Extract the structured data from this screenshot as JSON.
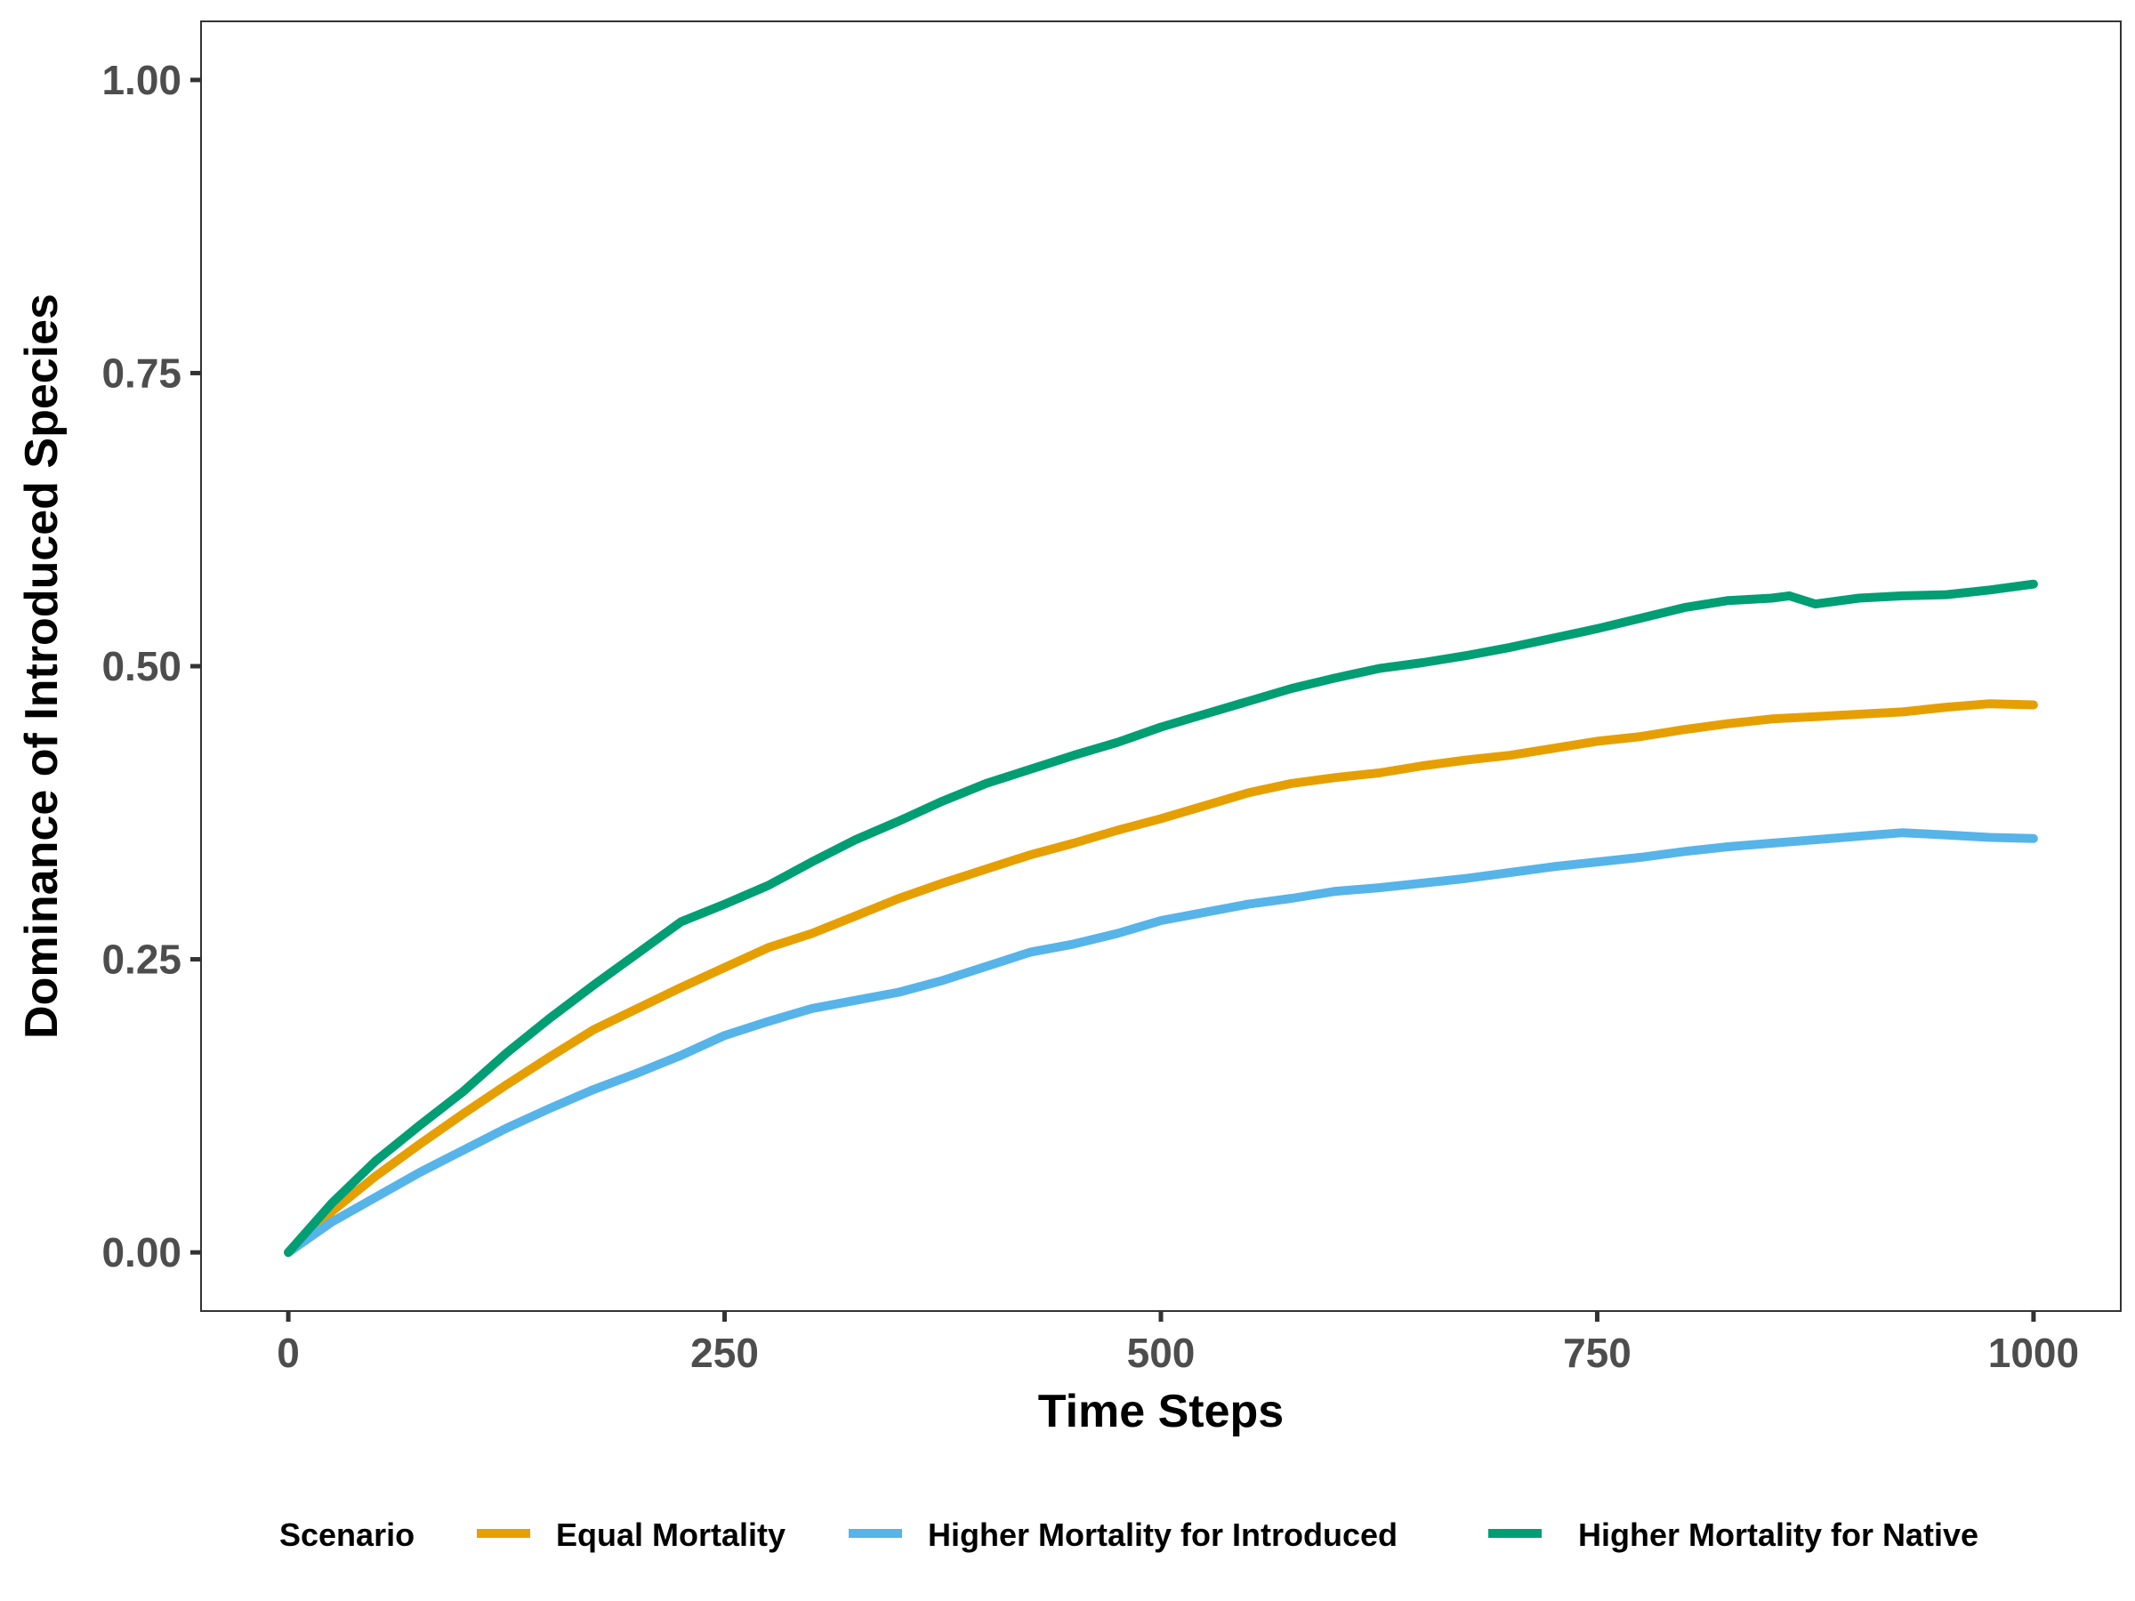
{
  "chart_data": {
    "type": "line",
    "xlabel": "Time Steps",
    "ylabel": "Dominance of Introduced Species",
    "xlim": [
      -50,
      1050
    ],
    "ylim": [
      -0.05,
      1.05
    ],
    "x_ticks": [
      0,
      250,
      500,
      750,
      1000
    ],
    "x_tick_labels": [
      "0",
      "250",
      "500",
      "750",
      "1000"
    ],
    "y_ticks": [
      0,
      0.25,
      0.5,
      0.75,
      1.0
    ],
    "y_tick_labels": [
      "0.00",
      "0.25",
      "0.50",
      "0.75",
      "1.00"
    ],
    "grid": false,
    "legend": {
      "title": "Scenario",
      "position": "bottom"
    },
    "series": [
      {
        "name": "Equal Mortality",
        "color": "#E69F00",
        "x": [
          0,
          25,
          50,
          75,
          100,
          125,
          150,
          175,
          200,
          225,
          250,
          275,
          300,
          325,
          350,
          375,
          400,
          425,
          450,
          475,
          500,
          525,
          550,
          575,
          600,
          625,
          650,
          675,
          700,
          725,
          750,
          775,
          800,
          825,
          850,
          875,
          900,
          925,
          950,
          975,
          1000
        ],
        "values": [
          0.0,
          0.035,
          0.065,
          0.092,
          0.118,
          0.143,
          0.167,
          0.19,
          0.208,
          0.226,
          0.243,
          0.26,
          0.272,
          0.287,
          0.302,
          0.315,
          0.327,
          0.339,
          0.349,
          0.36,
          0.37,
          0.381,
          0.392,
          0.4,
          0.405,
          0.409,
          0.415,
          0.42,
          0.424,
          0.43,
          0.436,
          0.44,
          0.446,
          0.451,
          0.455,
          0.457,
          0.459,
          0.461,
          0.465,
          0.468,
          0.467
        ]
      },
      {
        "name": "Higher Mortality for Introduced",
        "color": "#56B4E9",
        "x": [
          0,
          25,
          50,
          75,
          100,
          125,
          150,
          175,
          200,
          225,
          250,
          275,
          300,
          325,
          350,
          375,
          400,
          425,
          450,
          475,
          500,
          525,
          550,
          575,
          600,
          625,
          650,
          675,
          700,
          725,
          750,
          775,
          800,
          825,
          850,
          875,
          900,
          925,
          950,
          975,
          1000
        ],
        "values": [
          0.0,
          0.026,
          0.047,
          0.068,
          0.087,
          0.106,
          0.123,
          0.139,
          0.153,
          0.168,
          0.185,
          0.197,
          0.208,
          0.215,
          0.222,
          0.232,
          0.244,
          0.256,
          0.263,
          0.272,
          0.283,
          0.29,
          0.297,
          0.302,
          0.308,
          0.311,
          0.315,
          0.319,
          0.324,
          0.329,
          0.333,
          0.337,
          0.342,
          0.346,
          0.349,
          0.352,
          0.355,
          0.358,
          0.356,
          0.354,
          0.353
        ]
      },
      {
        "name": "Higher Mortality for Native",
        "color": "#009E73",
        "x": [
          0,
          25,
          50,
          75,
          100,
          125,
          150,
          175,
          200,
          225,
          250,
          275,
          300,
          325,
          350,
          375,
          400,
          425,
          450,
          475,
          500,
          525,
          550,
          575,
          600,
          625,
          650,
          675,
          700,
          725,
          750,
          775,
          800,
          825,
          850,
          860,
          875,
          900,
          925,
          950,
          975,
          1000
        ],
        "values": [
          0.0,
          0.042,
          0.078,
          0.108,
          0.137,
          0.17,
          0.2,
          0.228,
          0.255,
          0.282,
          0.297,
          0.313,
          0.333,
          0.352,
          0.368,
          0.385,
          0.4,
          0.412,
          0.424,
          0.435,
          0.448,
          0.459,
          0.47,
          0.481,
          0.49,
          0.498,
          0.503,
          0.509,
          0.516,
          0.524,
          0.532,
          0.541,
          0.55,
          0.556,
          0.558,
          0.56,
          0.553,
          0.558,
          0.56,
          0.561,
          0.565,
          0.57
        ]
      }
    ]
  }
}
